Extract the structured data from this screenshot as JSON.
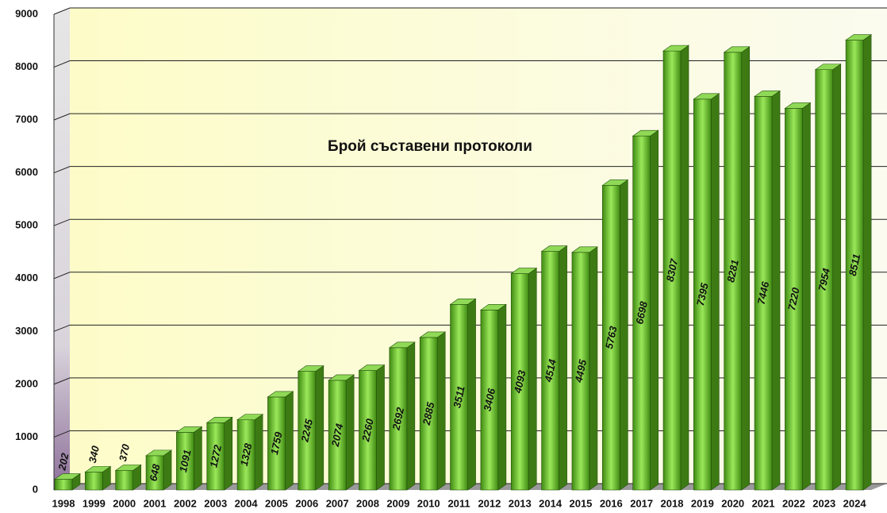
{
  "chart_data": {
    "type": "bar",
    "title": "Брой съставени протоколи",
    "categories": [
      "1998",
      "1999",
      "2000",
      "2001",
      "2002",
      "2003",
      "2004",
      "2005",
      "2006",
      "2007",
      "2008",
      "2009",
      "2010",
      "2011",
      "2012",
      "2013",
      "2014",
      "2015",
      "2016",
      "2017",
      "2018",
      "2019",
      "2020",
      "2021",
      "2022",
      "2023",
      "2024"
    ],
    "values": [
      202,
      340,
      370,
      648,
      1091,
      1272,
      1328,
      1759,
      2245,
      2074,
      2260,
      2692,
      2885,
      3511,
      3406,
      4093,
      4514,
      4495,
      5763,
      6698,
      8307,
      7395,
      8281,
      7446,
      7220,
      7954,
      8511
    ],
    "color": "#6cc12e",
    "ylim": [
      0,
      9000
    ],
    "yticks": [
      0,
      1000,
      2000,
      3000,
      4000,
      5000,
      6000,
      7000,
      8000,
      9000
    ],
    "grid": true
  }
}
